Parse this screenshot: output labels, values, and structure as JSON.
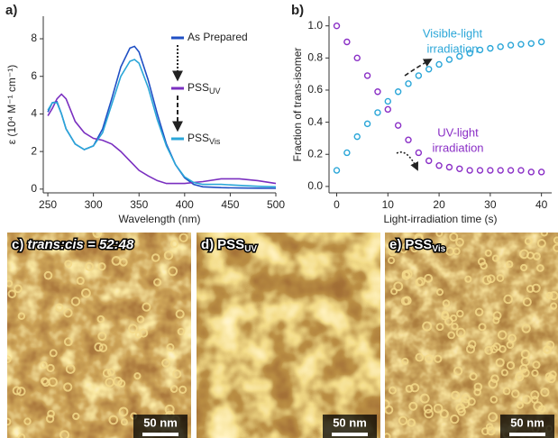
{
  "chart_data": [
    {
      "type": "line",
      "panel": "a)",
      "xlabel": "Wavelength (nm)",
      "ylabel": "ε (10⁴ M⁻¹ cm⁻¹)",
      "x": [
        250,
        255,
        260,
        265,
        270,
        280,
        290,
        300,
        310,
        320,
        330,
        340,
        345,
        350,
        360,
        370,
        380,
        390,
        400,
        410,
        420,
        440,
        460,
        480,
        500
      ],
      "series": [
        {
          "name": "As Prepared",
          "color": "#1f4fc4",
          "values": [
            4.1,
            4.6,
            4.65,
            4.0,
            3.2,
            2.4,
            2.1,
            2.3,
            3.2,
            4.8,
            6.5,
            7.5,
            7.6,
            7.3,
            5.8,
            4.0,
            2.4,
            1.3,
            0.6,
            0.25,
            0.12,
            0.08,
            0.06,
            0.05,
            0.04
          ]
        },
        {
          "name": "PSS",
          "subscript": "UV",
          "color": "#7a2fc0",
          "values": [
            3.9,
            4.3,
            4.8,
            5.05,
            4.8,
            3.6,
            3.0,
            2.7,
            2.6,
            2.4,
            2.0,
            1.5,
            1.25,
            1.0,
            0.7,
            0.45,
            0.3,
            0.3,
            0.3,
            0.35,
            0.4,
            0.55,
            0.55,
            0.45,
            0.3
          ]
        },
        {
          "name": "PSS",
          "subscript": "Vis",
          "color": "#2aa6d8",
          "values": [
            4.2,
            4.6,
            4.6,
            4.0,
            3.2,
            2.4,
            2.1,
            2.3,
            3.0,
            4.5,
            6.0,
            6.8,
            6.9,
            6.7,
            5.4,
            3.7,
            2.3,
            1.3,
            0.65,
            0.35,
            0.25,
            0.25,
            0.2,
            0.15,
            0.12
          ]
        }
      ],
      "xlim": [
        245,
        500
      ],
      "xticks": [
        250,
        300,
        350,
        400,
        450,
        500
      ],
      "ylim": [
        -0.2,
        9.2
      ],
      "yticks": [
        0,
        2,
        4,
        6,
        8
      ]
    },
    {
      "type": "scatter",
      "panel": "b)",
      "xlabel": "Light-irradiation time (s)",
      "ylabel": "Fraction of trans-isomer",
      "x": [
        0,
        2,
        4,
        6,
        8,
        10,
        12,
        14,
        16,
        18,
        20,
        22,
        24,
        26,
        28,
        30,
        32,
        34,
        36,
        38,
        40
      ],
      "series": [
        {
          "color": "#8a2fc6",
          "values": [
            1.0,
            0.9,
            0.8,
            0.69,
            0.59,
            0.48,
            0.38,
            0.29,
            0.21,
            0.16,
            0.13,
            0.12,
            0.11,
            0.1,
            0.1,
            0.1,
            0.1,
            0.1,
            0.1,
            0.09,
            0.09
          ]
        },
        {
          "color": "#2aa6d8",
          "values": [
            0.1,
            0.21,
            0.31,
            0.39,
            0.46,
            0.53,
            0.59,
            0.64,
            0.69,
            0.73,
            0.76,
            0.79,
            0.81,
            0.83,
            0.85,
            0.86,
            0.87,
            0.88,
            0.885,
            0.89,
            0.9
          ]
        }
      ],
      "annotations": [
        {
          "lines": [
            "Visible-light",
            "irradiation"
          ],
          "color": "#2aa6d8"
        },
        {
          "lines": [
            "UV-light",
            "irradiation"
          ],
          "color": "#8a2fc6"
        }
      ],
      "xlim": [
        -1.5,
        42
      ],
      "xticks": [
        0,
        10,
        20,
        30,
        40
      ],
      "ylim": [
        -0.04,
        1.06
      ],
      "yticks": [
        {
          "value": 0,
          "label": "0.0"
        },
        0.2,
        0.4,
        0.6,
        0.8,
        {
          "value": 1,
          "label": "1.0"
        }
      ]
    }
  ],
  "images": [
    {
      "label": "c)",
      "caption": "trans:cis = 52:48",
      "scale_bar": "50 nm"
    },
    {
      "label": "d)",
      "caption": "PSS",
      "subscript": "UV",
      "scale_bar": "50 nm"
    },
    {
      "label": "e)",
      "caption": "PSS",
      "subscript": "Vis",
      "scale_bar": "50 nm"
    }
  ]
}
